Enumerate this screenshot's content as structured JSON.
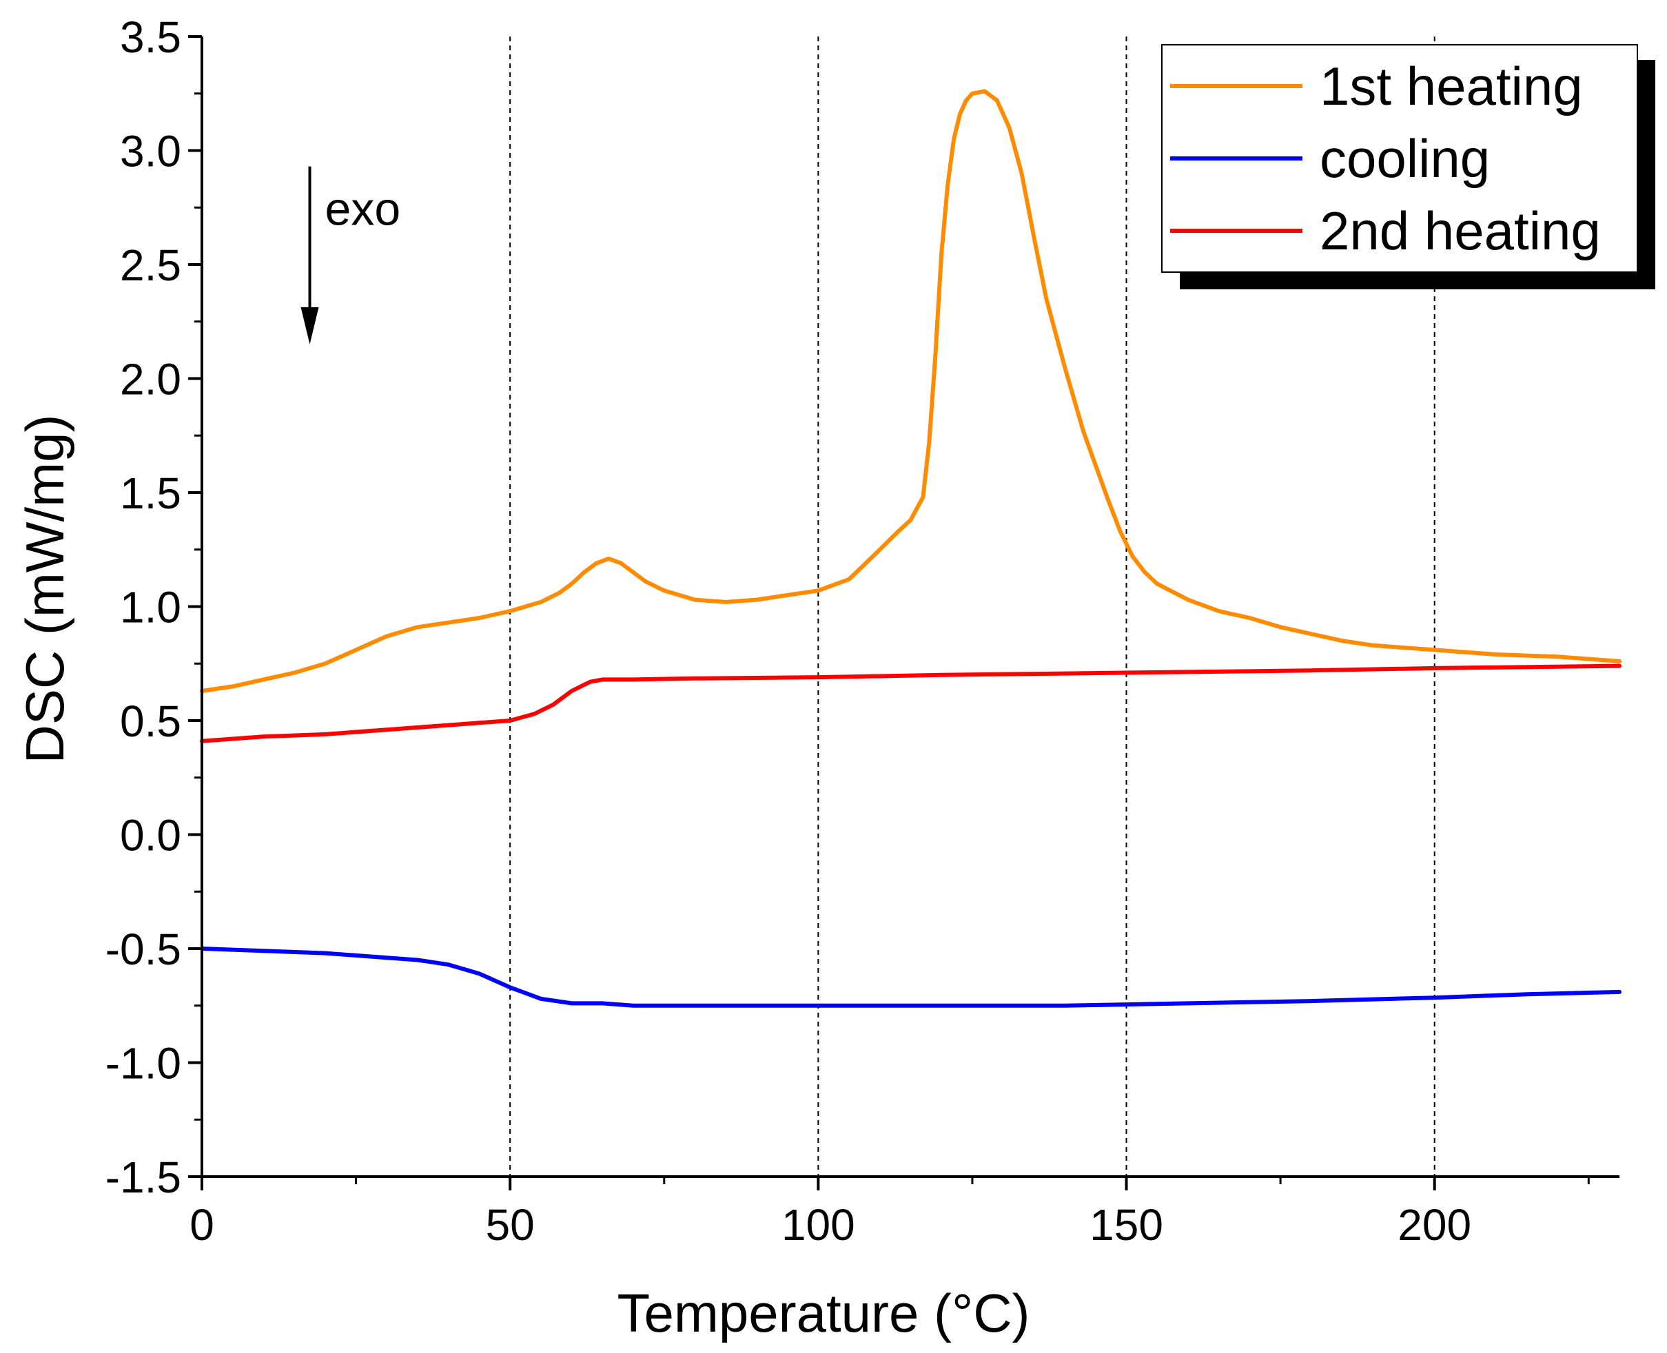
{
  "chart_data": {
    "type": "line",
    "title": "",
    "xlabel": "Temperature (°C)",
    "ylabel": "DSC (mW/mg)",
    "xlim": [
      0,
      230
    ],
    "ylim": [
      -1.5,
      3.5
    ],
    "xticks": [
      0,
      50,
      100,
      150,
      200
    ],
    "xtick_labels": [
      "0",
      "50",
      "100",
      "150",
      "200"
    ],
    "yticks": [
      -1.5,
      -1.0,
      -0.5,
      0.0,
      0.5,
      1.0,
      1.5,
      2.0,
      2.5,
      3.0,
      3.5
    ],
    "ytick_labels": [
      "-1.5",
      "-1.0",
      "-0.5",
      "0.0",
      "0.5",
      "1.0",
      "1.5",
      "2.0",
      "2.5",
      "3.0",
      "3.5"
    ],
    "vertical_gridlines": [
      50,
      100,
      150,
      200
    ],
    "legend_position": "top-right",
    "annotation": {
      "text": "exo",
      "arrow": "down",
      "x": 17.5,
      "y_from": 2.93,
      "y_to": 2.15
    },
    "series": [
      {
        "name": "1st heating",
        "color": "#ff8c00",
        "x": [
          0,
          5,
          10,
          15,
          20,
          25,
          30,
          35,
          40,
          45,
          50,
          55,
          58,
          60,
          62,
          64,
          66,
          68,
          70,
          72,
          75,
          80,
          85,
          90,
          95,
          100,
          105,
          110,
          113,
          115,
          117,
          118,
          119,
          120,
          121,
          122,
          123,
          124,
          125,
          127,
          129,
          131,
          133,
          135,
          137,
          140,
          143,
          145,
          147,
          149,
          151,
          153,
          155,
          160,
          165,
          170,
          175,
          180,
          185,
          190,
          200,
          210,
          220,
          230
        ],
        "y": [
          0.63,
          0.65,
          0.68,
          0.71,
          0.75,
          0.81,
          0.87,
          0.91,
          0.93,
          0.95,
          0.98,
          1.02,
          1.06,
          1.1,
          1.15,
          1.19,
          1.21,
          1.19,
          1.15,
          1.11,
          1.07,
          1.03,
          1.02,
          1.03,
          1.05,
          1.07,
          1.12,
          1.25,
          1.33,
          1.38,
          1.48,
          1.72,
          2.1,
          2.55,
          2.85,
          3.05,
          3.16,
          3.22,
          3.25,
          3.26,
          3.22,
          3.1,
          2.9,
          2.62,
          2.35,
          2.05,
          1.77,
          1.62,
          1.47,
          1.33,
          1.22,
          1.15,
          1.1,
          1.03,
          0.98,
          0.95,
          0.91,
          0.88,
          0.85,
          0.83,
          0.81,
          0.79,
          0.78,
          0.76
        ]
      },
      {
        "name": "cooling",
        "color": "#0000ff",
        "x": [
          0,
          10,
          20,
          30,
          35,
          40,
          45,
          50,
          55,
          60,
          65,
          70,
          80,
          100,
          120,
          140,
          150,
          160,
          180,
          200,
          215,
          230
        ],
        "y": [
          -0.5,
          -0.51,
          -0.52,
          -0.54,
          -0.55,
          -0.57,
          -0.61,
          -0.67,
          -0.72,
          -0.74,
          -0.74,
          -0.75,
          -0.75,
          -0.75,
          -0.75,
          -0.75,
          -0.745,
          -0.74,
          -0.73,
          -0.715,
          -0.7,
          -0.69
        ]
      },
      {
        "name": "2nd heating",
        "color": "#ff0000",
        "x": [
          0,
          10,
          20,
          30,
          40,
          45,
          50,
          54,
          57,
          60,
          63,
          65,
          70,
          80,
          100,
          120,
          150,
          180,
          200,
          230
        ],
        "y": [
          0.41,
          0.43,
          0.44,
          0.46,
          0.48,
          0.49,
          0.5,
          0.53,
          0.57,
          0.63,
          0.67,
          0.68,
          0.68,
          0.685,
          0.69,
          0.7,
          0.71,
          0.72,
          0.73,
          0.74
        ]
      }
    ]
  }
}
